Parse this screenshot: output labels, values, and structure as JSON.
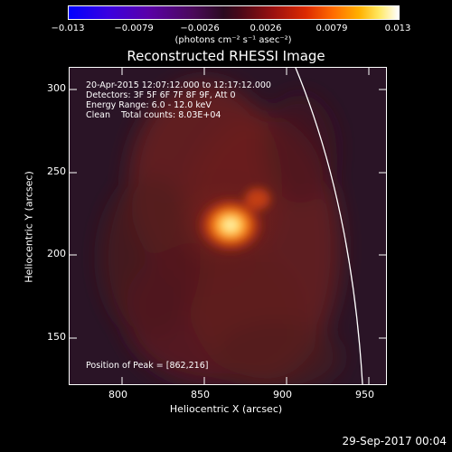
{
  "colorbar": {
    "tick_labels": [
      "−0.013",
      "−0.0079",
      "−0.0026",
      "0.0026",
      "0.0079",
      "0.013"
    ],
    "units": "(photons cm⁻² s⁻¹ asec⁻²)"
  },
  "title": "Reconstructed RHESSI Image",
  "info_lines": [
    "20-Apr-2015 12:07:12.000 to 12:17:12.000",
    "Detectors: 3F 5F 6F 7F 8F 9F, Att 0",
    "Energy Range: 6.0 - 12.0 keV",
    "Clean    Total counts: 8.03E+04"
  ],
  "peak_text": "Position of Peak = [862,216]",
  "axes": {
    "xlabel": "Heliocentric X (arcsec)",
    "ylabel": "Heliocentric Y (arcsec)",
    "xticks": [
      "800",
      "850",
      "900",
      "950"
    ],
    "yticks": [
      "150",
      "200",
      "250",
      "300"
    ]
  },
  "footer": "29-Sep-2017 00:04"
}
